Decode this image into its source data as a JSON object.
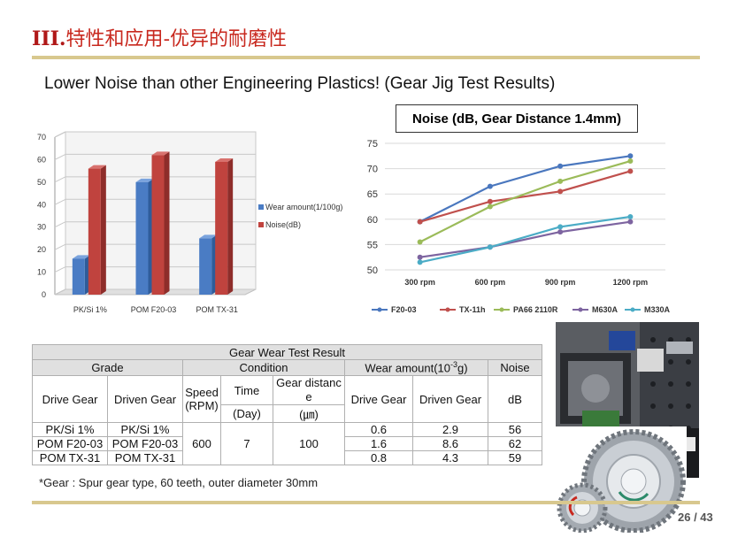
{
  "slide": {
    "title_roman": "III.",
    "title_part1": "特性和应用",
    "title_sep": "-",
    "title_part2": "优异的耐磨性",
    "subtitle": "Lower Noise than other Engineering Plastics! (Gear Jig Test Results)",
    "page_number": "26 / 43",
    "footnote": "*Gear : Spur gear type, 60 teeth, outer diameter 30mm"
  },
  "colors": {
    "accent_red": "#c8281e",
    "rule_gold": "#d8c88e",
    "bar_blue": "#4a7cc4",
    "bar_red": "#c0433e"
  },
  "chart_data": [
    {
      "type": "bar",
      "title": "",
      "categories": [
        "PK/Si 1%",
        "POM F20-03",
        "POM TX-31"
      ],
      "series": [
        {
          "name": "Wear amount(1/100g)",
          "values": [
            16,
            50,
            25
          ],
          "color": "#4a7cc4"
        },
        {
          "name": "Noise(dB)",
          "values": [
            56,
            62,
            59
          ],
          "color": "#c0433e"
        }
      ],
      "yticks": [
        "0",
        "10",
        "20",
        "30",
        "40",
        "50",
        "60",
        "70"
      ],
      "ylim": [
        0,
        70
      ],
      "legend": "right",
      "grid": true
    },
    {
      "type": "line",
      "title": "Noise (dB, Gear Distance 1.4mm)",
      "categories": [
        "300 rpm",
        "600 rpm",
        "900 rpm",
        "1200 rpm"
      ],
      "series": [
        {
          "name": "F20-03",
          "values": [
            59.5,
            66.5,
            70.5,
            72.5
          ],
          "color": "#4a77be"
        },
        {
          "name": "TX-11h",
          "values": [
            59.5,
            63.5,
            65.5,
            69.5
          ],
          "color": "#c0504d"
        },
        {
          "name": "PA66 2110R",
          "values": [
            55.5,
            62.5,
            67.5,
            71.5
          ],
          "color": "#9bbb59"
        },
        {
          "name": "M630A",
          "values": [
            52.5,
            54.5,
            57.5,
            59.5
          ],
          "color": "#7d64a0"
        },
        {
          "name": "M330A",
          "values": [
            51.5,
            54.5,
            58.5,
            60.5
          ],
          "color": "#4bacc6"
        }
      ],
      "yticks": [
        "50",
        "55",
        "60",
        "65",
        "70",
        "75"
      ],
      "ylim": [
        50,
        75
      ],
      "legend": "bottom",
      "grid": true
    }
  ],
  "table": {
    "caption": "Gear Wear Test Result",
    "h_grade": "Grade",
    "h_condition": "Condition",
    "h_wear": "Wear amount(10",
    "h_wear_exp": "-3",
    "h_wear_unit": "g)",
    "h_noise": "Noise",
    "h_drive": "Drive Gear",
    "h_driven": "Driven Gear",
    "h_speed": "Speed (RPM)",
    "h_time": "Time",
    "h_distance": "Gear distance",
    "h_wear_drive": "Drive Gear",
    "h_wear_driven": "Driven Gear",
    "h_db": "dB",
    "u_time": "(Day)",
    "u_distance": "(㎛)",
    "speed": "600",
    "time": "7",
    "distance": "100",
    "rows": [
      {
        "drive": "PK/Si 1%",
        "driven": "PK/Si 1%",
        "wear_drive": "0.6",
        "wear_driven": "2.9",
        "noise": "56"
      },
      {
        "drive": "POM F20-03",
        "driven": "POM F20-03",
        "wear_drive": "1.6",
        "wear_driven": "8.6",
        "noise": "62"
      },
      {
        "drive": "POM TX-31",
        "driven": "POM TX-31",
        "wear_drive": "0.8",
        "wear_driven": "4.3",
        "noise": "59"
      }
    ]
  }
}
